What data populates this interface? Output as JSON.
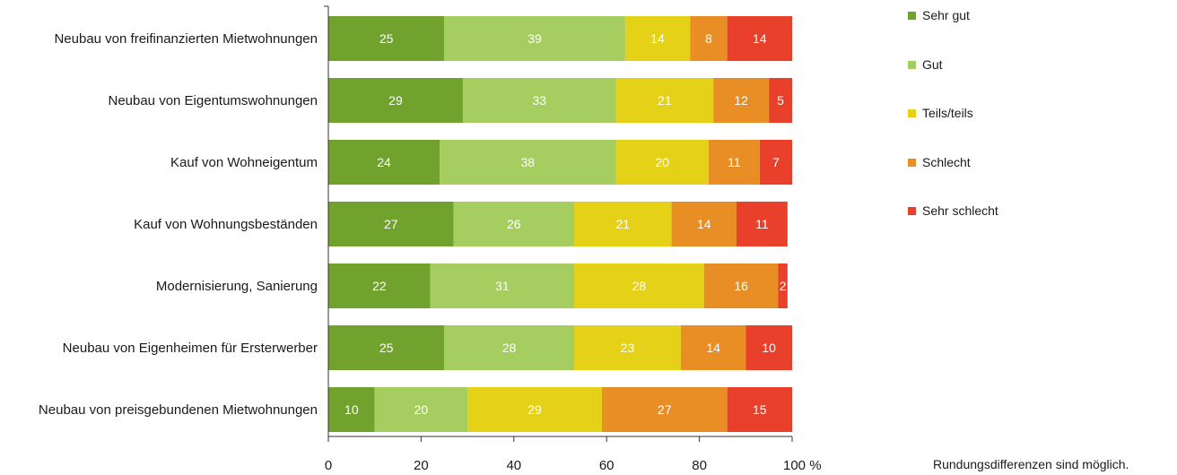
{
  "chart_data": {
    "type": "bar",
    "orientation": "horizontal",
    "stacked": true,
    "categories": [
      "Neubau von freifinanzierten Mietwohnungen",
      "Neubau von Eigentumswohnungen",
      "Kauf von Wohneigentum",
      "Kauf von Wohnungsbeständen",
      "Modernisierung, Sanierung",
      "Neubau von Eigenheimen für Ersterwerber",
      "Neubau von preisgebundenen Mietwohnungen"
    ],
    "series": [
      {
        "name": "Sehr gut",
        "color": "#72a22e",
        "values": [
          25,
          29,
          24,
          27,
          22,
          25,
          10
        ]
      },
      {
        "name": "Gut",
        "color": "#a6cd5f",
        "values": [
          39,
          33,
          38,
          26,
          31,
          28,
          20
        ]
      },
      {
        "name": "Teils/teils",
        "color": "#e5d117",
        "values": [
          14,
          21,
          20,
          21,
          28,
          23,
          29
        ]
      },
      {
        "name": "Schlecht",
        "color": "#e88e24",
        "values": [
          8,
          12,
          11,
          14,
          16,
          14,
          27
        ]
      },
      {
        "name": "Sehr schlecht",
        "color": "#e8402a",
        "values": [
          14,
          5,
          7,
          11,
          2,
          10,
          15
        ]
      }
    ],
    "xlim": [
      0,
      100
    ],
    "xticks": [
      "0",
      "20",
      "40",
      "60",
      "80",
      "100 %"
    ],
    "grid": false,
    "legend_position": "right"
  },
  "note": "Rundungsdifferenzen sind möglich."
}
